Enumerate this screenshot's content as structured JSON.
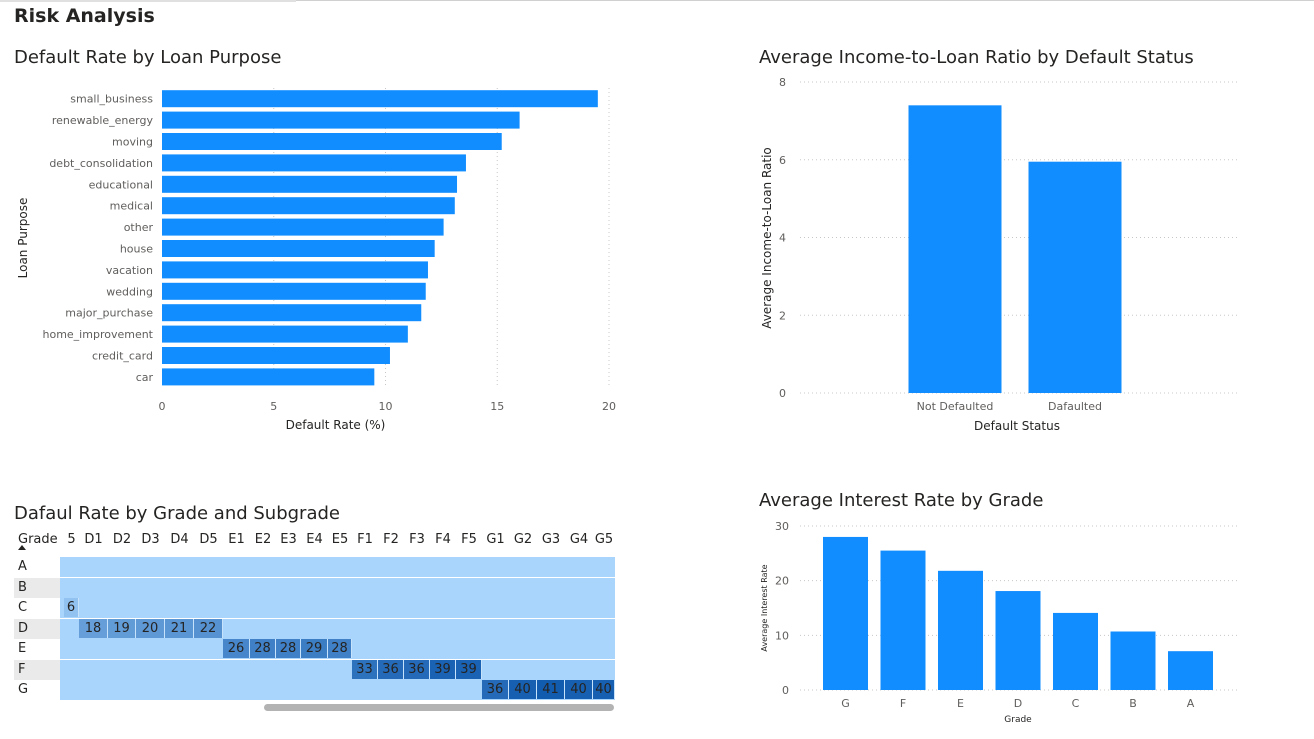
{
  "page": {
    "title": "Risk Analysis"
  },
  "colors": {
    "bar": "#118dff",
    "grid": "#c8c8c8",
    "text": "#252423",
    "axis_text": "#605e5c"
  },
  "chart_data": [
    {
      "type": "bar",
      "orientation": "horizontal",
      "title": "Default Rate by Loan Purpose",
      "xlabel": "Default Rate (%)",
      "ylabel": "Loan Purpose",
      "categories": [
        "small_business",
        "renewable_energy",
        "moving",
        "debt_consolidation",
        "educational",
        "medical",
        "other",
        "house",
        "vacation",
        "wedding",
        "major_purchase",
        "home_improvement",
        "credit_card",
        "car"
      ],
      "values": [
        19.5,
        16.0,
        15.2,
        13.6,
        13.2,
        13.1,
        12.6,
        12.2,
        11.9,
        11.8,
        11.6,
        11.0,
        10.2,
        9.5
      ],
      "xlim": [
        0,
        20
      ],
      "xticks": [
        "0",
        "5",
        "10",
        "15",
        "20"
      ],
      "grid": true
    },
    {
      "type": "bar",
      "title": "Average Income-to-Loan Ratio by Default Status",
      "xlabel": "Default Status",
      "ylabel": "Average Income-to-Loan Ratio",
      "categories": [
        "Not Defaulted",
        "Dafaulted"
      ],
      "values": [
        7.4,
        5.95
      ],
      "ylim": [
        0,
        8
      ],
      "yticks": [
        "0",
        "2",
        "4",
        "6",
        "8"
      ],
      "grid": true
    },
    {
      "type": "heatmap",
      "title": "Dafaul Rate by Grade and Subgrade",
      "row_header": "Grade",
      "columns": [
        "5",
        "D1",
        "D2",
        "D3",
        "D4",
        "D5",
        "E1",
        "E2",
        "E3",
        "E4",
        "E5",
        "F1",
        "F2",
        "F3",
        "F4",
        "F5",
        "G1",
        "G2",
        "G3",
        "G4",
        "G5"
      ],
      "rows": [
        "A",
        "B",
        "C",
        "D",
        "E",
        "F",
        "G"
      ],
      "cells": [
        {
          "row": "C",
          "col": "5",
          "value": "6",
          "level": 0.15
        },
        {
          "row": "D",
          "col": "D1",
          "value": "18",
          "level": 0.45
        },
        {
          "row": "D",
          "col": "D2",
          "value": "19",
          "level": 0.47
        },
        {
          "row": "D",
          "col": "D3",
          "value": "20",
          "level": 0.5
        },
        {
          "row": "D",
          "col": "D4",
          "value": "21",
          "level": 0.52
        },
        {
          "row": "D",
          "col": "D5",
          "value": "22",
          "level": 0.55
        },
        {
          "row": "E",
          "col": "E1",
          "value": "26",
          "level": 0.65
        },
        {
          "row": "E",
          "col": "E2",
          "value": "28",
          "level": 0.7
        },
        {
          "row": "E",
          "col": "E3",
          "value": "28",
          "level": 0.7
        },
        {
          "row": "E",
          "col": "E4",
          "value": "29",
          "level": 0.72
        },
        {
          "row": "E",
          "col": "E5",
          "value": "28",
          "level": 0.7
        },
        {
          "row": "F",
          "col": "F1",
          "value": "33",
          "level": 0.82
        },
        {
          "row": "F",
          "col": "F2",
          "value": "36",
          "level": 0.88
        },
        {
          "row": "F",
          "col": "F3",
          "value": "36",
          "level": 0.88
        },
        {
          "row": "F",
          "col": "F4",
          "value": "39",
          "level": 0.95
        },
        {
          "row": "F",
          "col": "F5",
          "value": "39",
          "level": 0.95
        },
        {
          "row": "G",
          "col": "G1",
          "value": "36",
          "level": 0.88
        },
        {
          "row": "G",
          "col": "G2",
          "value": "40",
          "level": 0.97
        },
        {
          "row": "G",
          "col": "G3",
          "value": "41",
          "level": 1.0
        },
        {
          "row": "G",
          "col": "G4",
          "value": "40",
          "level": 0.97
        },
        {
          "row": "G",
          "col": "G5",
          "value": "40",
          "level": 0.97
        }
      ]
    },
    {
      "type": "bar",
      "title": "Average Interest Rate by Grade",
      "xlabel": "Grade",
      "ylabel": "Average Interest Rate",
      "categories": [
        "G",
        "F",
        "E",
        "D",
        "C",
        "B",
        "A"
      ],
      "values": [
        28.0,
        25.5,
        21.8,
        18.1,
        14.1,
        10.7,
        7.1
      ],
      "ylim": [
        0,
        30
      ],
      "yticks": [
        "0",
        "10",
        "20",
        "30"
      ],
      "grid": true
    }
  ]
}
